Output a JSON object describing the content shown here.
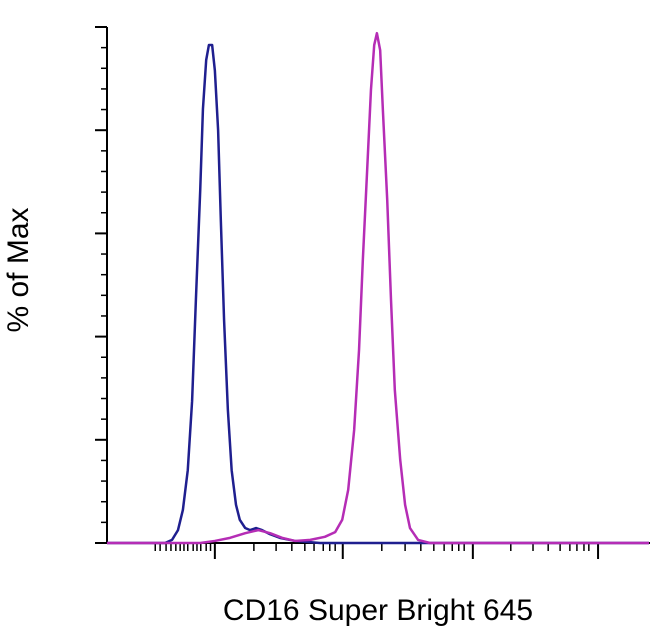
{
  "chart_data": {
    "type": "line",
    "x_label": "CD16 Super Bright 645",
    "y_label": "% of Max",
    "xlim": [
      0,
      100
    ],
    "ylim": [
      0,
      100
    ],
    "xticks": [
      19.9,
      43.5,
      67.5,
      90.6
    ],
    "xminorticks": [
      8.9,
      9.8,
      10.9,
      11.8,
      12.7,
      13.5,
      14.2,
      14.9,
      15.9,
      16.6,
      17.3,
      18.3,
      19.1,
      27.1,
      31.2,
      34.1,
      36.5,
      38.2,
      39.9,
      41.1,
      42.1,
      50.7,
      55.0,
      57.9,
      60.3,
      62.2,
      63.7,
      64.9,
      65.9,
      74.5,
      78.6,
      81.4,
      83.6,
      85.4,
      86.7,
      88.0,
      88.9
    ],
    "yticks": [
      0,
      20,
      40,
      60,
      80,
      100
    ],
    "yminorticks": [
      4,
      8,
      12,
      16,
      24,
      28,
      32,
      36,
      44,
      48,
      52,
      56,
      64,
      68,
      72,
      76,
      84,
      88,
      92,
      96
    ],
    "series": [
      {
        "color": "#1f1f8f",
        "x": [
          0,
          10.7,
          12.0,
          13.1,
          14.0,
          14.9,
          15.7,
          16.4,
          17.2,
          17.7,
          18.3,
          18.8,
          19.4,
          19.9,
          20.5,
          21.0,
          21.6,
          22.3,
          23.0,
          23.8,
          24.5,
          25.5,
          26.4,
          27.5,
          28.6,
          30.1,
          31.9,
          34.7,
          39.3,
          100
        ],
        "values": [
          0,
          0,
          0.6,
          2.5,
          6.4,
          14.1,
          27.5,
          47.1,
          68.4,
          84.1,
          93.6,
          96.5,
          96.5,
          91.6,
          80.0,
          62.6,
          43.2,
          25.8,
          14.1,
          7.4,
          4.5,
          2.9,
          2.5,
          2.9,
          2.5,
          1.7,
          1.0,
          0.4,
          0,
          0
        ]
      },
      {
        "color": "#b52db5",
        "x": [
          0,
          17.2,
          19.9,
          22.7,
          25.5,
          27.9,
          30.1,
          32.3,
          34.7,
          37.5,
          40.2,
          42.1,
          43.4,
          44.5,
          45.6,
          46.5,
          47.2,
          48.0,
          48.7,
          49.3,
          49.8,
          50.4,
          50.9,
          51.7,
          52.4,
          53.1,
          54.1,
          55.0,
          55.9,
          57.4,
          59.6,
          100
        ],
        "values": [
          0,
          0,
          0.4,
          1.0,
          1.9,
          2.5,
          1.9,
          1.0,
          0.4,
          0.6,
          1.2,
          2.1,
          4.5,
          10.3,
          21.9,
          37.4,
          54.8,
          72.3,
          87.8,
          96.5,
          98.8,
          95.5,
          83.9,
          66.5,
          47.1,
          29.7,
          16.1,
          7.4,
          2.9,
          0.6,
          0,
          0
        ]
      }
    ]
  }
}
